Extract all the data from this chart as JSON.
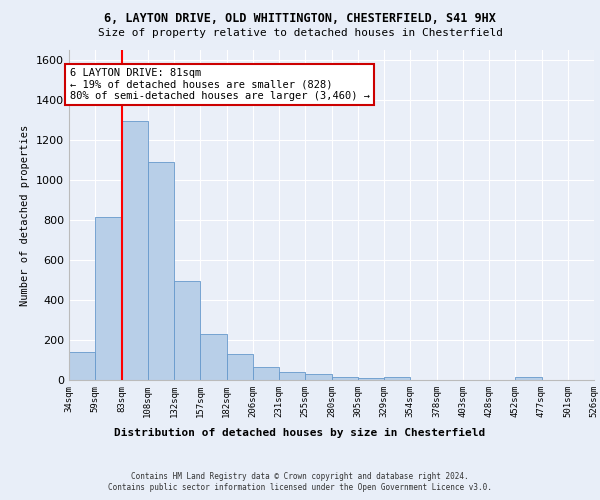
{
  "title_line1": "6, LAYTON DRIVE, OLD WHITTINGTON, CHESTERFIELD, S41 9HX",
  "title_line2": "Size of property relative to detached houses in Chesterfield",
  "xlabel": "Distribution of detached houses by size in Chesterfield",
  "ylabel": "Number of detached properties",
  "bar_values": [
    140,
    815,
    1295,
    1090,
    495,
    230,
    130,
    65,
    40,
    28,
    15,
    8,
    15,
    2,
    0,
    2,
    0,
    15,
    0,
    0
  ],
  "bin_labels": [
    "34sqm",
    "59sqm",
    "83sqm",
    "108sqm",
    "132sqm",
    "157sqm",
    "182sqm",
    "206sqm",
    "231sqm",
    "255sqm",
    "280sqm",
    "305sqm",
    "329sqm",
    "354sqm",
    "378sqm",
    "403sqm",
    "428sqm",
    "452sqm",
    "477sqm",
    "501sqm",
    "526sqm"
  ],
  "bar_color": "#b8cfe8",
  "bar_edge_color": "#6699cc",
  "red_line_x": 2,
  "annotation_text": "6 LAYTON DRIVE: 81sqm\n← 19% of detached houses are smaller (828)\n80% of semi-detached houses are larger (3,460) →",
  "annotation_box_color": "#ffffff",
  "annotation_box_edge": "#cc0000",
  "ylim": [
    0,
    1650
  ],
  "yticks": [
    0,
    200,
    400,
    600,
    800,
    1000,
    1200,
    1400,
    1600
  ],
  "footer_line1": "Contains HM Land Registry data © Crown copyright and database right 2024.",
  "footer_line2": "Contains public sector information licensed under the Open Government Licence v3.0.",
  "bg_color": "#e8eef8",
  "plot_bg_color": "#eaeff8"
}
